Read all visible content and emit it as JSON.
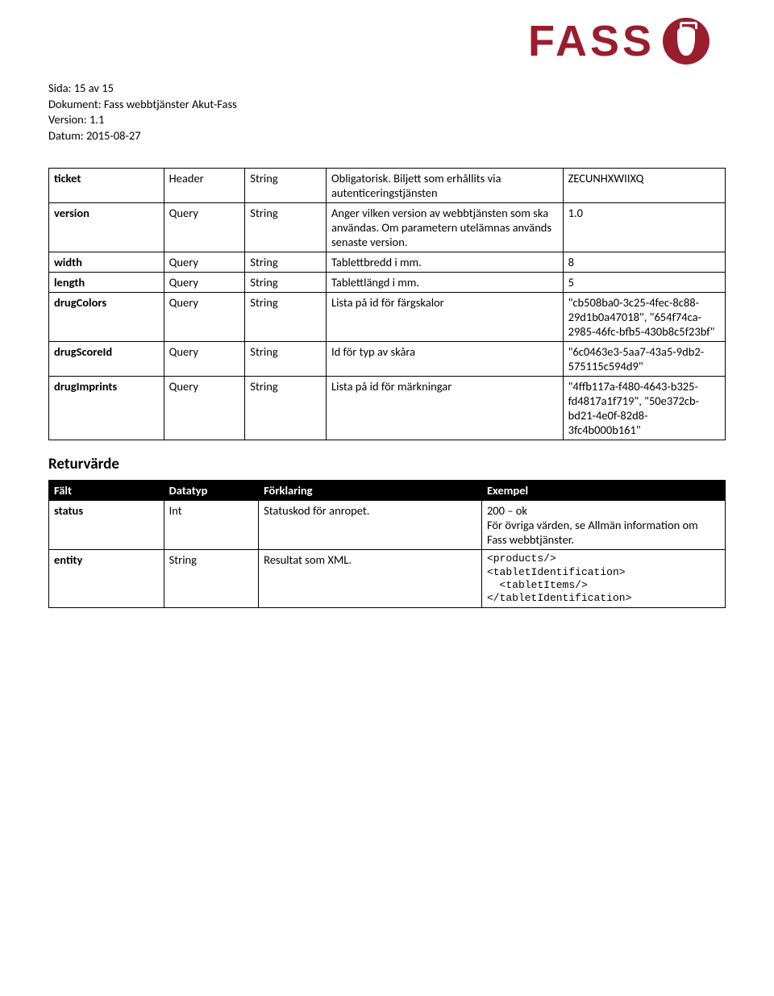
{
  "meta": {
    "page_line": "Sida: 15 av 15",
    "doc_line": "Dokument: Fass webbtjänster Akut-Fass",
    "version_line": "Version: 1.1",
    "date_line": "Datum: 2015-08-27"
  },
  "logo": {
    "text": "FASS",
    "color": "#9a1d2e"
  },
  "table1": {
    "rows": [
      {
        "field": "ticket",
        "mode": "Header",
        "type": "String",
        "desc": "Obligatorisk. Biljett som erhållits via autenticeringstjänsten",
        "example": "ZECUNHXWIIXQ"
      },
      {
        "field": "version",
        "mode": "Query",
        "type": "String",
        "desc": "Anger vilken version av webbtjänsten som ska användas. Om parametern utelämnas används senaste version.",
        "example": "1.0"
      },
      {
        "field": "width",
        "mode": "Query",
        "type": "String",
        "desc": "Tablettbredd i mm.",
        "example": "8"
      },
      {
        "field": "length",
        "mode": "Query",
        "type": "String",
        "desc": "Tablettlängd i mm.",
        "example": "5"
      },
      {
        "field": "drugColors",
        "mode": "Query",
        "type": "String",
        "desc": "Lista på id för färgskalor",
        "example": "\"cb508ba0-3c25-4fec-8c88-29d1b0a47018\", \"654f74ca-2985-46fc-bfb5-430b8c5f23bf\""
      },
      {
        "field": "drugScoreId",
        "mode": "Query",
        "type": "String",
        "desc": "Id för typ av skåra",
        "example": "\"6c0463e3-5aa7-43a5-9db2-575115c594d9\""
      },
      {
        "field": "drugImprints",
        "mode": "Query",
        "type": "String",
        "desc": "Lista på id för märkningar",
        "example": "\"4ffb117a-f480-4643-b325-fd4817a1f719\", \"50e372cb-bd21-4e0f-82d8-3fc4b000b161\""
      }
    ]
  },
  "return_section": {
    "title": "Returvärde",
    "headers": {
      "field": "Fält",
      "datatype": "Datatyp",
      "desc": "Förklaring",
      "example": "Exempel"
    },
    "rows": [
      {
        "field": "status",
        "datatype": "Int",
        "desc": "Statuskod för anropet.",
        "example": "200 – ok\nFör övriga värden, se Allmän information om Fass webbtjänster."
      },
      {
        "field": "entity",
        "datatype": "String",
        "desc": "Resultat som XML.",
        "example_xml": "<products/>\n<tabletIdentification>\n  <tabletItems/>\n</tabletIdentification>"
      }
    ]
  }
}
